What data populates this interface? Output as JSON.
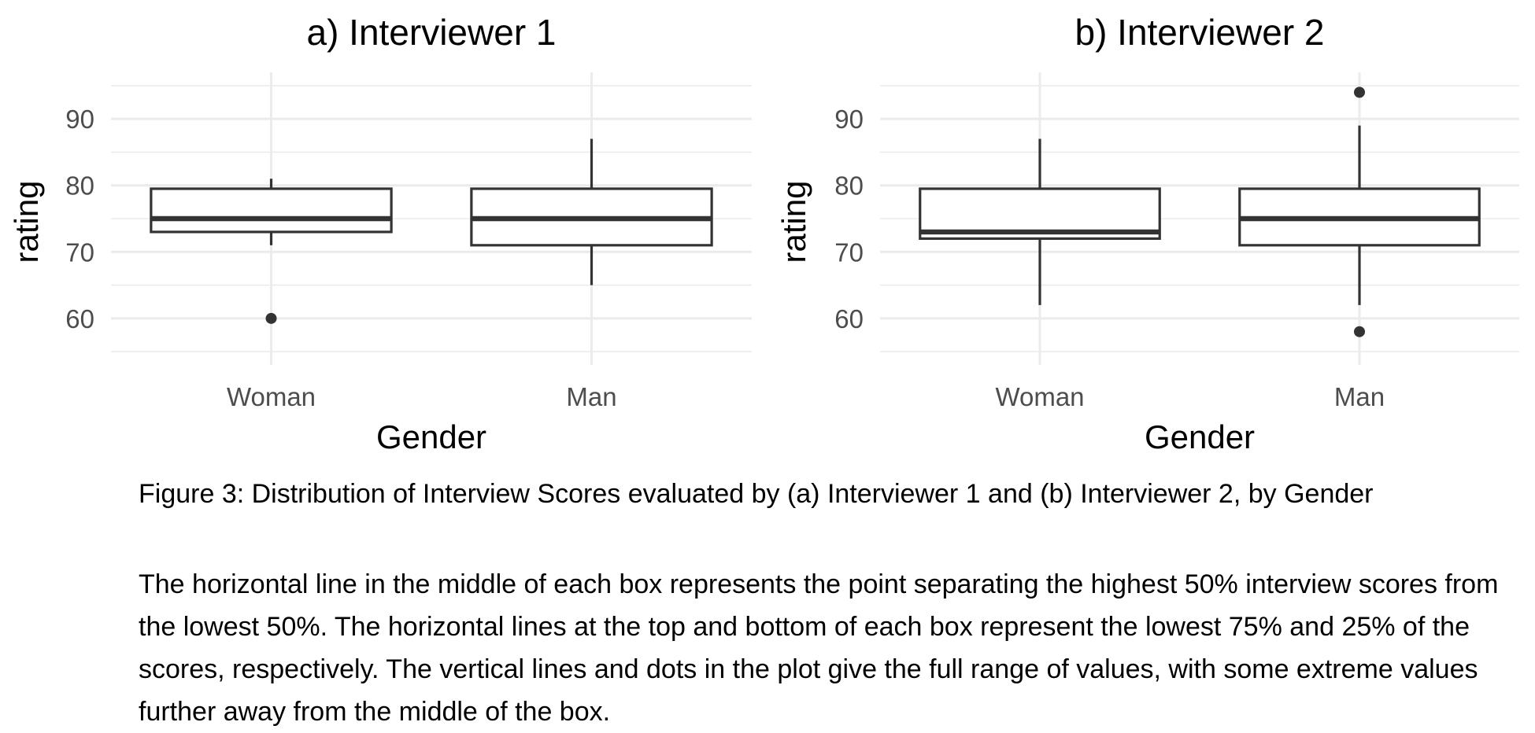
{
  "chart_data": [
    {
      "type": "boxplot",
      "title": "a) Interviewer 1",
      "xlabel": "Gender",
      "ylabel": "rating",
      "categories": [
        "Woman",
        "Man"
      ],
      "ylim": [
        53,
        97
      ],
      "yticks": [
        60,
        70,
        80,
        90
      ],
      "grid": true,
      "boxes": [
        {
          "category": "Woman",
          "whisker_low": 71,
          "q1": 73,
          "median": 75,
          "q3": 79.5,
          "whisker_high": 81,
          "outliers": [
            60
          ]
        },
        {
          "category": "Man",
          "whisker_low": 65,
          "q1": 71,
          "median": 75,
          "q3": 79.5,
          "whisker_high": 87,
          "outliers": []
        }
      ]
    },
    {
      "type": "boxplot",
      "title": "b) Interviewer 2",
      "xlabel": "Gender",
      "ylabel": "rating",
      "categories": [
        "Woman",
        "Man"
      ],
      "ylim": [
        53,
        97
      ],
      "yticks": [
        60,
        70,
        80,
        90
      ],
      "grid": true,
      "boxes": [
        {
          "category": "Woman",
          "whisker_low": 62,
          "q1": 72,
          "median": 73,
          "q3": 79.5,
          "whisker_high": 87,
          "outliers": []
        },
        {
          "category": "Man",
          "whisker_low": 62,
          "q1": 71,
          "median": 75,
          "q3": 79.5,
          "whisker_high": 89,
          "outliers": [
            94,
            58
          ]
        }
      ]
    }
  ],
  "caption": "Figure 3: Distribution of Interview Scores evaluated by (a) Interviewer 1 and (b) Interviewer 2, by Gender",
  "note": "The horizontal line in the middle of each box represents the point separating the highest 50% interview scores from the lowest 50%. The horizontal lines at the top and bottom of each box represent the lowest 75% and 25% of the scores, respectively. The vertical lines and dots in the plot give the full range of values, with some extreme values further away from the middle of the box.",
  "colors": {
    "grid": "#ebebeb",
    "box_line": "#333333",
    "tick_text": "#4d4d4d",
    "title_text": "#000000"
  }
}
